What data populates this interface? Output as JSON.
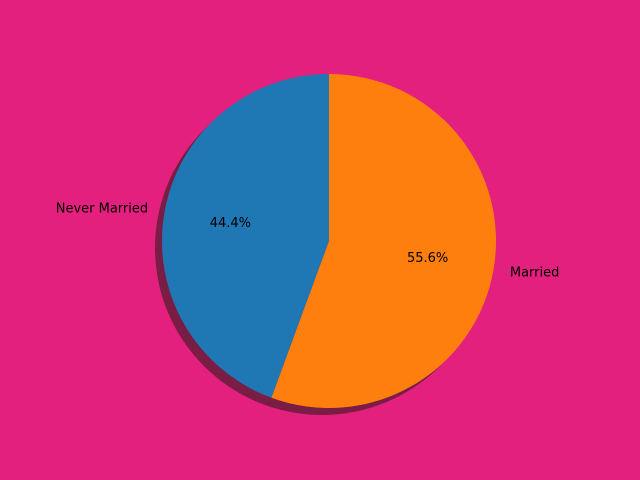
{
  "chart_data": {
    "type": "pie",
    "categories": [
      "Never Married",
      "Married"
    ],
    "values": [
      44.4,
      55.6
    ],
    "percent_labels": [
      "44.4%",
      "55.6%"
    ],
    "colors": [
      "#1f77b4",
      "#ff7f0e"
    ],
    "start_angle_deg": 90,
    "direction": "counterclockwise",
    "shadow": true,
    "legend": "none",
    "title": ""
  },
  "theme": {
    "background": "#e3207d",
    "shadow_color": "#7a1d45"
  }
}
